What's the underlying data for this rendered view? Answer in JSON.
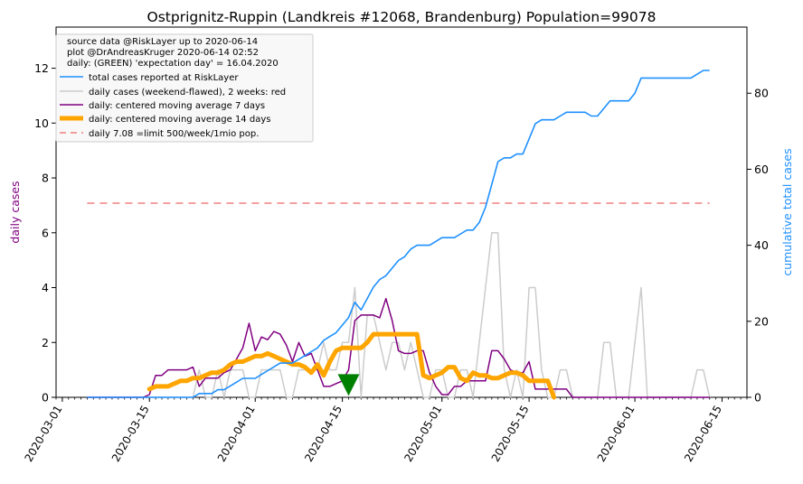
{
  "chart_data": {
    "type": "line",
    "title": "Ostprignitz-Ruppin (Landkreis #12068, Brandenburg) Population=99078",
    "ylabel_left": "daily cases",
    "ylabel_right": "cumulative total cases",
    "ylim_left": [
      0,
      13.5
    ],
    "ylim_right": [
      0,
      97.4
    ],
    "yticks_left": [
      0,
      2,
      4,
      6,
      8,
      10,
      12
    ],
    "yticks_right": [
      0,
      20,
      40,
      60,
      80
    ],
    "xlim": [
      "2020-02-29",
      "2020-06-19"
    ],
    "xticks": [
      "2020-03-01",
      "2020-03-15",
      "2020-04-01",
      "2020-04-15",
      "2020-05-01",
      "2020-05-15",
      "2020-06-01",
      "2020-06-15"
    ],
    "legend_position": "top-left",
    "legend_notes": [
      "source data @RiskLayer up to 2020-06-14",
      "plot @DrAndreasKruger 2020-06-14 02:52",
      "daily: (GREEN) 'expectation day' = 16.04.2020"
    ],
    "colors": {
      "cumulative": "#1e90ff",
      "daily_raw": "#cccccc",
      "avg7": "#800080",
      "avg14": "#ffa500",
      "limit": "#f08080",
      "marker": "#008000",
      "left_axis_label": "#800080",
      "right_axis_label": "#1e90ff"
    },
    "start_date": "2020-03-05",
    "series": [
      {
        "name": "total cases reported at RiskLayer",
        "axis": "right",
        "values": [
          0,
          0,
          0,
          0,
          0,
          0,
          0,
          0,
          0,
          0,
          0,
          0,
          0,
          0,
          0,
          0,
          0,
          0,
          1,
          1,
          1,
          2,
          2,
          3,
          4,
          5,
          5,
          5,
          6,
          7,
          8,
          9,
          9,
          9,
          10,
          11,
          12,
          13,
          15,
          16,
          17,
          19,
          21,
          25,
          23,
          26,
          29,
          31,
          32,
          34,
          36,
          37,
          39,
          40,
          40,
          40,
          41,
          42,
          42,
          42,
          43,
          44,
          44,
          46,
          50,
          56,
          62,
          63,
          63,
          64,
          64,
          68,
          72,
          73,
          73,
          73,
          74,
          75,
          75,
          75,
          75,
          74,
          74,
          76,
          78,
          78,
          78,
          78,
          80,
          84,
          84,
          84,
          84,
          84,
          84,
          84,
          84,
          84,
          85,
          86,
          86,
          86,
          86,
          86,
          86,
          86,
          86,
          86,
          85,
          85,
          85,
          85,
          85,
          84,
          84,
          84,
          84,
          84,
          84,
          84,
          84,
          84,
          84,
          84,
          84,
          84,
          84,
          84,
          84,
          84,
          84,
          84,
          84,
          84,
          84,
          84,
          84,
          84,
          84,
          84,
          84,
          84,
          84,
          84,
          84,
          84,
          84,
          84,
          84,
          84,
          84,
          84,
          84,
          84,
          84,
          84,
          84,
          84,
          84,
          84,
          84,
          84,
          84,
          84,
          84,
          84,
          84,
          84,
          84,
          84,
          84,
          84,
          84,
          84,
          84,
          84,
          84,
          84,
          84
        ]
      },
      {
        "name": "daily cases (weekend-flawed), 2 weeks: red",
        "axis": "left",
        "values": [
          0,
          0,
          0,
          0,
          0,
          0,
          0,
          0,
          0,
          0,
          0,
          0,
          0,
          0,
          0,
          0,
          0,
          0,
          1,
          0,
          0,
          1,
          0,
          1,
          1,
          1,
          0,
          0,
          1,
          1,
          1,
          1,
          0,
          0,
          1,
          1,
          1,
          1,
          2,
          1,
          1,
          2,
          2,
          4,
          0,
          3,
          3,
          2,
          1,
          2,
          2,
          1,
          2,
          1,
          0,
          0,
          1,
          1,
          0,
          0,
          1,
          1,
          0,
          2,
          4,
          6,
          6,
          1,
          0,
          1,
          0,
          4,
          4,
          1,
          0,
          0,
          1,
          1,
          0,
          0,
          0,
          0,
          0,
          2,
          2,
          0,
          0,
          0,
          2,
          4,
          0,
          0,
          0,
          0,
          0,
          0,
          0,
          0,
          1,
          1,
          0,
          0,
          0,
          0,
          0,
          0,
          0,
          0,
          0,
          0,
          0,
          0,
          0,
          0,
          0,
          0,
          0,
          0,
          0,
          0,
          0,
          0,
          0,
          0,
          0,
          0,
          0,
          0,
          0,
          0,
          0,
          0,
          0,
          0,
          0,
          0,
          0,
          0,
          0,
          0,
          0,
          0,
          0,
          0,
          0,
          0,
          0,
          0,
          0,
          0,
          0,
          0,
          0,
          0,
          0,
          0,
          0,
          0,
          0,
          0,
          0,
          0,
          0,
          0,
          0,
          0,
          0,
          0,
          0,
          0,
          0,
          0,
          0,
          0,
          0,
          0,
          0,
          0,
          0,
          0,
          0,
          0,
          0,
          0,
          0
        ]
      },
      {
        "name": "daily: centered moving average 7 days",
        "axis": "left",
        "values": [
          0,
          0,
          0,
          0,
          0,
          0,
          0,
          0,
          0,
          0,
          0.1,
          0.8,
          0.8,
          1.0,
          1.0,
          1.0,
          1.0,
          1.1,
          0.4,
          0.7,
          0.7,
          0.7,
          0.9,
          1.0,
          1.4,
          1.8,
          2.7,
          1.7,
          2.2,
          2.1,
          2.4,
          2.3,
          1.9,
          1.3,
          2.0,
          1.5,
          1.6,
          1.0,
          0.4,
          0.4,
          0.5,
          0.6,
          1.0,
          2.8,
          3.0,
          3.0,
          3.0,
          2.9,
          3.6,
          2.8,
          1.7,
          1.6,
          1.6,
          1.7,
          1.7,
          0.9,
          0.4,
          0.1,
          0.1,
          0.4,
          0.4,
          0.6,
          0.6,
          0.6,
          0.6,
          1.7,
          1.7,
          1.4,
          1.0,
          0.9,
          0.9,
          1.3,
          0.3,
          0.3,
          0.3,
          0.3,
          0.3,
          0.3,
          0.0,
          0.0,
          0.0,
          0.0,
          0.0,
          0.0,
          0.0,
          0.0,
          0.0,
          0.0,
          0.0,
          0.0,
          0.0,
          0.0,
          0.0,
          0.0,
          0.0,
          0.0,
          0.0,
          0.0,
          0.0,
          0.0,
          0.0,
          0.0,
          0.0
        ]
      },
      {
        "name": "daily: centered moving average 14 days",
        "axis": "left",
        "values": [
          null,
          null,
          null,
          null,
          null,
          null,
          null,
          null,
          null,
          null,
          0.3,
          0.4,
          0.4,
          0.4,
          0.5,
          0.6,
          0.6,
          0.7,
          0.7,
          0.8,
          0.9,
          0.9,
          1.0,
          1.2,
          1.3,
          1.3,
          1.4,
          1.5,
          1.5,
          1.6,
          1.5,
          1.4,
          1.3,
          1.2,
          1.2,
          1.1,
          0.9,
          1.2,
          0.8,
          1.3,
          1.7,
          1.8,
          1.8,
          1.8,
          1.8,
          2.0,
          2.3,
          2.3,
          2.3,
          2.3,
          2.3,
          2.3,
          2.3,
          2.3,
          0.8,
          0.7,
          0.8,
          0.9,
          1.1,
          1.1,
          0.7,
          0.6,
          0.9,
          0.8,
          0.8,
          0.7,
          0.7,
          0.8,
          0.9,
          0.9,
          0.8,
          0.6,
          0.6,
          0.6,
          0.6,
          0.0
        ]
      },
      {
        "name": "daily 7.08 =limit 500/week/1mio pop.",
        "axis": "left",
        "values": [
          7.08,
          7.08
        ]
      }
    ],
    "expectation_day": "2020-04-16",
    "expectation_value": 0.45
  }
}
